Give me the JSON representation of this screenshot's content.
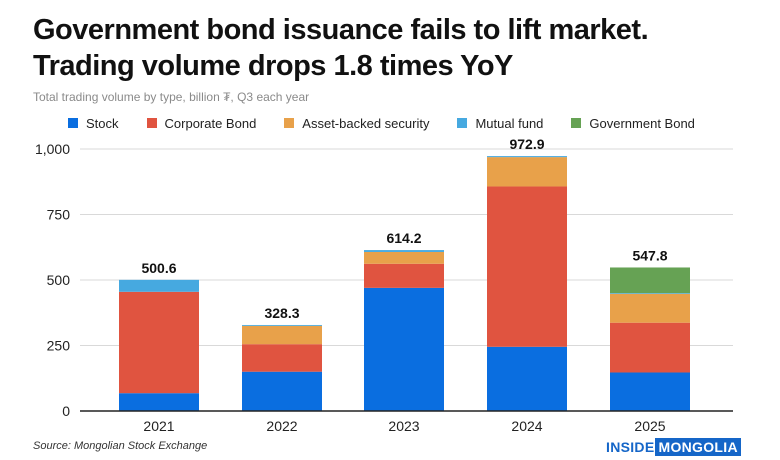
{
  "header": {
    "title_line1": "Government bond issuance fails to lift market.",
    "title_line2": "Trading volume drops 1.8 times YoY",
    "subtitle": "Total trading volume by type, billion ₮, Q3 each year"
  },
  "footer": {
    "source": "Source: Mongolian Stock Exchange",
    "brand_part1": "INSIDE",
    "brand_part2": "MONGOLIA"
  },
  "colors": {
    "Stock": "#0a6ee0",
    "Corporate Bond": "#e05440",
    "Asset-backed security": "#e8a14a",
    "Mutual fund": "#46a9e0",
    "Government Bond": "#66a254",
    "grid": "#d9d9d9",
    "axis": "#222222"
  },
  "chart_data": {
    "type": "bar",
    "stacked": true,
    "title": "Total trading volume by type, billion ₮, Q3 each year",
    "xlabel": "",
    "ylabel": "",
    "ylim": [
      0,
      1000
    ],
    "yticks": [
      0,
      250,
      500,
      750,
      1000
    ],
    "ytick_labels": [
      "0",
      "250",
      "500",
      "750",
      "1,000"
    ],
    "grid": true,
    "legend_position": "top",
    "categories": [
      "2021",
      "2022",
      "2023",
      "2024",
      "2025"
    ],
    "series": [
      {
        "name": "Stock",
        "values": [
          68,
          150,
          470,
          245,
          147
        ]
      },
      {
        "name": "Corporate Bond",
        "values": [
          387,
          105,
          92,
          612,
          190
        ]
      },
      {
        "name": "Asset-backed security",
        "values": [
          0,
          70,
          45,
          112,
          110
        ]
      },
      {
        "name": "Mutual fund",
        "values": [
          45.6,
          3.3,
          7.2,
          3.9,
          2.8
        ]
      },
      {
        "name": "Government Bond",
        "values": [
          0,
          0,
          0,
          0,
          98
        ]
      }
    ],
    "totals": [
      500.6,
      328.3,
      614.2,
      972.9,
      547.8
    ],
    "total_labels": [
      "500.6",
      "328.3",
      "614.2",
      "972.9",
      "547.8"
    ]
  }
}
